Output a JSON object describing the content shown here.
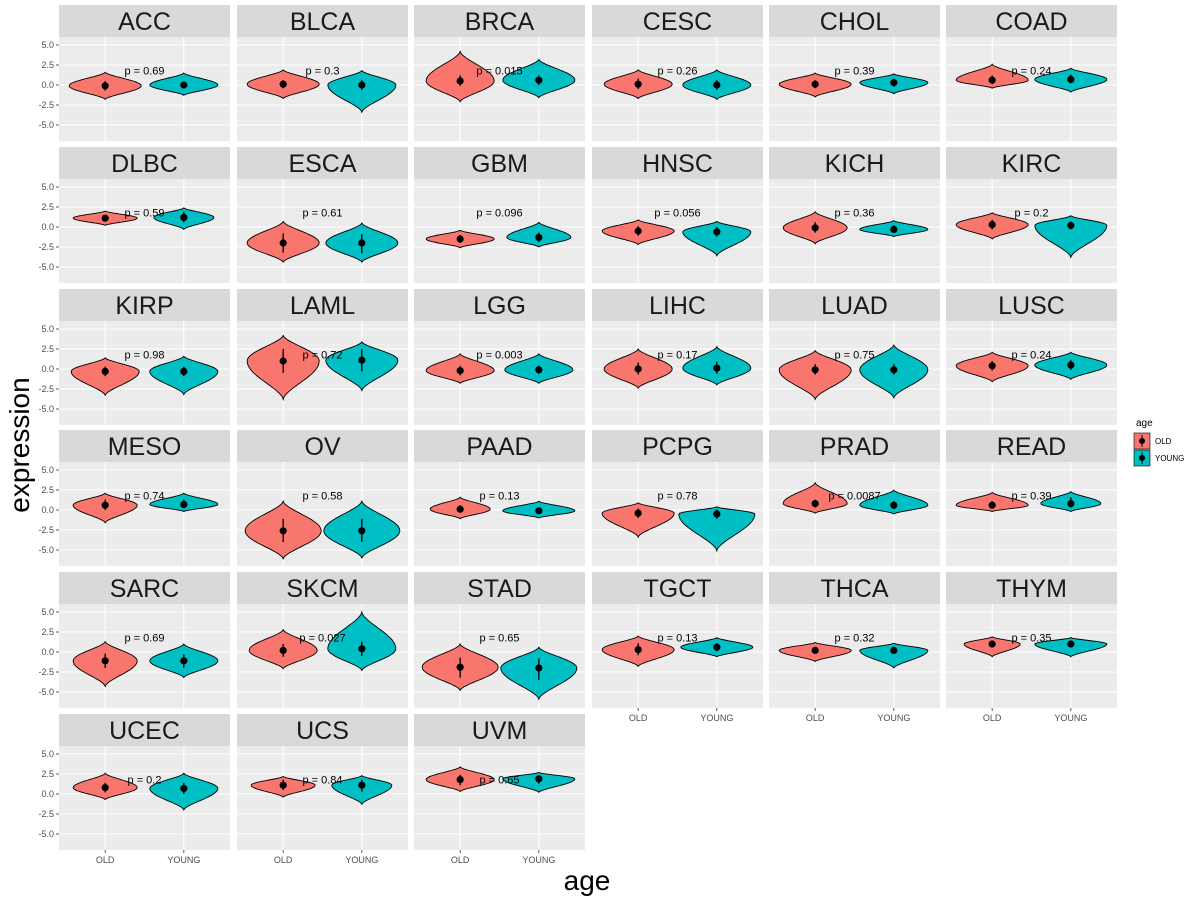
{
  "chart_data": {
    "type": "violin",
    "xlabel": "age",
    "ylabel": "expression",
    "categories": [
      "OLD",
      "YOUNG"
    ],
    "ylim": [
      -7,
      6
    ],
    "yticks": [
      5.0,
      2.5,
      0.0,
      -2.5,
      -5.0
    ],
    "ytick_labels": [
      "5.0",
      "2.5",
      "0.0",
      "-2.5",
      "-5.0"
    ],
    "legend": {
      "title": "age",
      "position": "right",
      "entries": [
        {
          "label": "OLD",
          "color": "#F8766D"
        },
        {
          "label": "YOUNG",
          "color": "#00BFC4"
        }
      ]
    },
    "colors": {
      "OLD": "#F8766D",
      "YOUNG": "#00BFC4"
    },
    "p_label_y": 1.8,
    "panels": [
      {
        "name": "ACC",
        "p": "p = 0.69",
        "old": {
          "median": -0.1,
          "min": -1.8,
          "max": 1.6,
          "width": 0.9,
          "q1": -0.7,
          "q3": 0.5
        },
        "young": {
          "median": 0.0,
          "min": -1.3,
          "max": 1.5,
          "width": 0.85,
          "q1": -0.4,
          "q3": 0.4
        }
      },
      {
        "name": "BLCA",
        "p": "p = 0.3",
        "old": {
          "median": 0.1,
          "min": -1.7,
          "max": 1.9,
          "width": 0.9,
          "q1": -0.4,
          "q3": 0.6
        },
        "young": {
          "median": 0.0,
          "min": -3.4,
          "max": 1.8,
          "width": 0.85,
          "q1": -0.6,
          "q3": 0.6
        }
      },
      {
        "name": "BRCA",
        "p": "p = 0.015",
        "old": {
          "median": 0.5,
          "min": -2.1,
          "max": 4.2,
          "width": 0.85,
          "q1": -0.1,
          "q3": 1.2
        },
        "young": {
          "median": 0.6,
          "min": -1.6,
          "max": 3.2,
          "width": 0.9,
          "q1": 0.0,
          "q3": 1.2
        }
      },
      {
        "name": "CESC",
        "p": "p = 0.26",
        "old": {
          "median": 0.1,
          "min": -1.7,
          "max": 1.9,
          "width": 0.85,
          "q1": -0.5,
          "q3": 0.8
        },
        "young": {
          "median": 0.0,
          "min": -1.8,
          "max": 1.9,
          "width": 0.85,
          "q1": -0.6,
          "q3": 0.6
        }
      },
      {
        "name": "CHOL",
        "p": "p = 0.39",
        "old": {
          "median": 0.1,
          "min": -1.5,
          "max": 1.5,
          "width": 0.9,
          "q1": -0.4,
          "q3": 0.6
        },
        "young": {
          "median": 0.3,
          "min": -1.1,
          "max": 1.4,
          "width": 0.85,
          "q1": -0.2,
          "q3": 0.8
        }
      },
      {
        "name": "COAD",
        "p": "p = 0.24",
        "old": {
          "median": 0.6,
          "min": -0.4,
          "max": 2.6,
          "width": 0.9,
          "q1": 0.1,
          "q3": 1.2
        },
        "young": {
          "median": 0.7,
          "min": -0.9,
          "max": 2.1,
          "width": 0.9,
          "q1": 0.2,
          "q3": 1.3
        }
      },
      {
        "name": "DLBC",
        "p": "p = 0.59",
        "old": {
          "median": 1.1,
          "min": 0.2,
          "max": 2.0,
          "width": 0.8,
          "q1": 0.7,
          "q3": 1.5
        },
        "young": {
          "median": 1.2,
          "min": -0.3,
          "max": 2.4,
          "width": 0.75,
          "q1": 0.6,
          "q3": 1.9
        }
      },
      {
        "name": "ESCA",
        "p": "p = 0.61",
        "old": {
          "median": -2.0,
          "min": -4.4,
          "max": 0.7,
          "width": 0.9,
          "q1": -3.2,
          "q3": -0.8
        },
        "young": {
          "median": -2.0,
          "min": -4.4,
          "max": 0.5,
          "width": 0.9,
          "q1": -3.3,
          "q3": -0.9
        }
      },
      {
        "name": "GBM",
        "p": "p = 0.096",
        "old": {
          "median": -1.5,
          "min": -2.6,
          "max": -0.4,
          "width": 0.85,
          "q1": -2.0,
          "q3": -1.0
        },
        "young": {
          "median": -1.3,
          "min": -2.5,
          "max": 0.6,
          "width": 0.8,
          "q1": -1.9,
          "q3": -0.7
        }
      },
      {
        "name": "HNSC",
        "p": "p = 0.056",
        "old": {
          "median": -0.5,
          "min": -2.2,
          "max": 0.9,
          "width": 0.9,
          "q1": -1.1,
          "q3": 0.1
        },
        "young": {
          "median": -0.6,
          "min": -3.6,
          "max": 0.7,
          "width": 0.85,
          "q1": -1.2,
          "q3": 0.0
        }
      },
      {
        "name": "KICH",
        "p": "p = 0.36",
        "old": {
          "median": -0.1,
          "min": -2.1,
          "max": 1.9,
          "width": 0.8,
          "q1": -0.7,
          "q3": 0.6
        },
        "young": {
          "median": -0.3,
          "min": -1.2,
          "max": 0.8,
          "width": 0.85,
          "q1": -0.7,
          "q3": 0.2
        }
      },
      {
        "name": "KIRC",
        "p": "p = 0.2",
        "old": {
          "median": 0.3,
          "min": -1.5,
          "max": 1.8,
          "width": 0.9,
          "q1": -0.3,
          "q3": 0.9
        },
        "young": {
          "median": 0.2,
          "min": -3.8,
          "max": 1.4,
          "width": 0.9,
          "q1": -0.3,
          "q3": 0.7
        }
      },
      {
        "name": "KIRP",
        "p": "p = 0.98",
        "old": {
          "median": -0.3,
          "min": -3.3,
          "max": 1.4,
          "width": 0.85,
          "q1": -0.9,
          "q3": 0.3
        },
        "young": {
          "median": -0.3,
          "min": -3.2,
          "max": 1.6,
          "width": 0.85,
          "q1": -0.9,
          "q3": 0.3
        }
      },
      {
        "name": "LAML",
        "p": "p = 0.72",
        "old": {
          "median": 1.0,
          "min": -3.8,
          "max": 4.2,
          "width": 0.9,
          "q1": -0.5,
          "q3": 2.5
        },
        "young": {
          "median": 1.1,
          "min": -2.7,
          "max": 3.4,
          "width": 0.9,
          "q1": -0.3,
          "q3": 2.5
        }
      },
      {
        "name": "LGG",
        "p": "p = 0.003",
        "old": {
          "median": -0.2,
          "min": -1.8,
          "max": 1.9,
          "width": 0.85,
          "q1": -0.8,
          "q3": 0.4
        },
        "young": {
          "median": -0.1,
          "min": -1.8,
          "max": 1.9,
          "width": 0.85,
          "q1": -0.6,
          "q3": 0.4
        }
      },
      {
        "name": "LIHC",
        "p": "p = 0.17",
        "old": {
          "median": 0.0,
          "min": -2.4,
          "max": 2.5,
          "width": 0.85,
          "q1": -0.7,
          "q3": 0.8
        },
        "young": {
          "median": 0.1,
          "min": -2.0,
          "max": 2.8,
          "width": 0.85,
          "q1": -0.6,
          "q3": 0.9
        }
      },
      {
        "name": "LUAD",
        "p": "p = 0.75",
        "old": {
          "median": -0.1,
          "min": -3.8,
          "max": 2.3,
          "width": 0.9,
          "q1": -0.7,
          "q3": 0.6
        },
        "young": {
          "median": -0.1,
          "min": -3.6,
          "max": 3.0,
          "width": 0.85,
          "q1": -0.7,
          "q3": 0.6
        }
      },
      {
        "name": "LUSC",
        "p": "p = 0.24",
        "old": {
          "median": 0.4,
          "min": -1.6,
          "max": 2.1,
          "width": 0.9,
          "q1": -0.2,
          "q3": 1.0
        },
        "young": {
          "median": 0.5,
          "min": -1.3,
          "max": 2.1,
          "width": 0.9,
          "q1": -0.1,
          "q3": 1.1
        }
      },
      {
        "name": "MESO",
        "p": "p = 0.74",
        "old": {
          "median": 0.6,
          "min": -1.6,
          "max": 2.1,
          "width": 0.8,
          "q1": 0.0,
          "q3": 1.3
        },
        "young": {
          "median": 0.7,
          "min": -0.2,
          "max": 2.1,
          "width": 0.85,
          "q1": 0.2,
          "q3": 1.3
        }
      },
      {
        "name": "OV",
        "p": "p = 0.58",
        "old": {
          "median": -2.6,
          "min": -6.1,
          "max": 1.1,
          "width": 0.95,
          "q1": -4.0,
          "q3": -1.1
        },
        "young": {
          "median": -2.6,
          "min": -6.0,
          "max": 1.1,
          "width": 0.95,
          "q1": -4.0,
          "q3": -1.1
        }
      },
      {
        "name": "PAAD",
        "p": "p = 0.13",
        "old": {
          "median": 0.1,
          "min": -1.1,
          "max": 1.6,
          "width": 0.75,
          "q1": -0.3,
          "q3": 0.6
        },
        "young": {
          "median": -0.1,
          "min": -1.0,
          "max": 1.1,
          "width": 0.9,
          "q1": -0.4,
          "q3": 0.3
        }
      },
      {
        "name": "PCPG",
        "p": "p = 0.78",
        "old": {
          "median": -0.4,
          "min": -3.4,
          "max": 0.9,
          "width": 0.9,
          "q1": -1.0,
          "q3": 0.2
        },
        "young": {
          "median": -0.5,
          "min": -5.1,
          "max": 0.4,
          "width": 0.95,
          "q1": -1.1,
          "q3": 0.1
        }
      },
      {
        "name": "PRAD",
        "p": "p = 0.0087",
        "old": {
          "median": 0.8,
          "min": -0.4,
          "max": 3.4,
          "width": 0.8,
          "q1": 0.3,
          "q3": 1.3
        },
        "young": {
          "median": 0.6,
          "min": -0.5,
          "max": 2.5,
          "width": 0.85,
          "q1": 0.1,
          "q3": 1.1
        }
      },
      {
        "name": "READ",
        "p": "p = 0.39",
        "old": {
          "median": 0.6,
          "min": -0.2,
          "max": 2.2,
          "width": 0.9,
          "q1": 0.2,
          "q3": 1.1
        },
        "young": {
          "median": 0.8,
          "min": -0.2,
          "max": 2.3,
          "width": 0.75,
          "q1": 0.3,
          "q3": 1.6
        }
      },
      {
        "name": "SARC",
        "p": "p = 0.69",
        "old": {
          "median": -1.1,
          "min": -4.3,
          "max": 1.3,
          "width": 0.8,
          "q1": -2.0,
          "q3": -0.2
        },
        "young": {
          "median": -1.1,
          "min": -3.2,
          "max": 1.0,
          "width": 0.85,
          "q1": -2.0,
          "q3": -0.3
        }
      },
      {
        "name": "SKCM",
        "p": "p = 0.027",
        "old": {
          "median": 0.2,
          "min": -2.1,
          "max": 2.8,
          "width": 0.85,
          "q1": -0.6,
          "q3": 1.0
        },
        "young": {
          "median": 0.4,
          "min": -2.3,
          "max": 5.0,
          "width": 0.85,
          "q1": -0.5,
          "q3": 1.3
        }
      },
      {
        "name": "STAD",
        "p": "p = 0.65",
        "old": {
          "median": -1.9,
          "min": -4.8,
          "max": 1.0,
          "width": 0.95,
          "q1": -3.2,
          "q3": -0.7
        },
        "young": {
          "median": -2.0,
          "min": -5.9,
          "max": 0.6,
          "width": 0.95,
          "q1": -3.5,
          "q3": -0.8
        }
      },
      {
        "name": "TGCT",
        "p": "p = 0.13",
        "old": {
          "median": 0.3,
          "min": -1.8,
          "max": 2.0,
          "width": 0.9,
          "q1": -0.4,
          "q3": 1.1
        },
        "young": {
          "median": 0.6,
          "min": -0.6,
          "max": 1.8,
          "width": 0.9,
          "q1": 0.1,
          "q3": 1.1
        }
      },
      {
        "name": "THCA",
        "p": "p = 0.32",
        "old": {
          "median": 0.2,
          "min": -1.2,
          "max": 1.2,
          "width": 0.9,
          "q1": -0.2,
          "q3": 0.6
        },
        "young": {
          "median": 0.2,
          "min": -2.0,
          "max": 1.1,
          "width": 0.85,
          "q1": -0.2,
          "q3": 0.6
        }
      },
      {
        "name": "THYM",
        "p": "p = 0.35",
        "old": {
          "median": 1.0,
          "min": -0.6,
          "max": 1.9,
          "width": 0.7,
          "q1": 0.6,
          "q3": 1.4
        },
        "young": {
          "median": 1.0,
          "min": -0.6,
          "max": 1.8,
          "width": 0.9,
          "q1": 0.6,
          "q3": 1.4
        }
      },
      {
        "name": "UCEC",
        "p": "p = 0.2",
        "old": {
          "median": 0.8,
          "min": -0.7,
          "max": 2.6,
          "width": 0.8,
          "q1": 0.2,
          "q3": 1.4
        },
        "young": {
          "median": 0.7,
          "min": -2.0,
          "max": 2.6,
          "width": 0.85,
          "q1": 0.0,
          "q3": 1.4
        }
      },
      {
        "name": "UCS",
        "p": "p = 0.84",
        "old": {
          "median": 1.1,
          "min": -0.4,
          "max": 2.2,
          "width": 0.8,
          "q1": 0.5,
          "q3": 1.8
        },
        "young": {
          "median": 1.1,
          "min": -1.3,
          "max": 2.3,
          "width": 0.75,
          "q1": 0.3,
          "q3": 1.8
        }
      },
      {
        "name": "UVM",
        "p": "p = 0.65",
        "old": {
          "median": 1.8,
          "min": 0.3,
          "max": 3.4,
          "width": 0.85,
          "q1": 1.1,
          "q3": 2.4
        },
        "young": {
          "median": 1.9,
          "min": 0.2,
          "max": 2.7,
          "width": 0.9,
          "q1": 1.3,
          "q3": 2.3
        }
      }
    ]
  }
}
